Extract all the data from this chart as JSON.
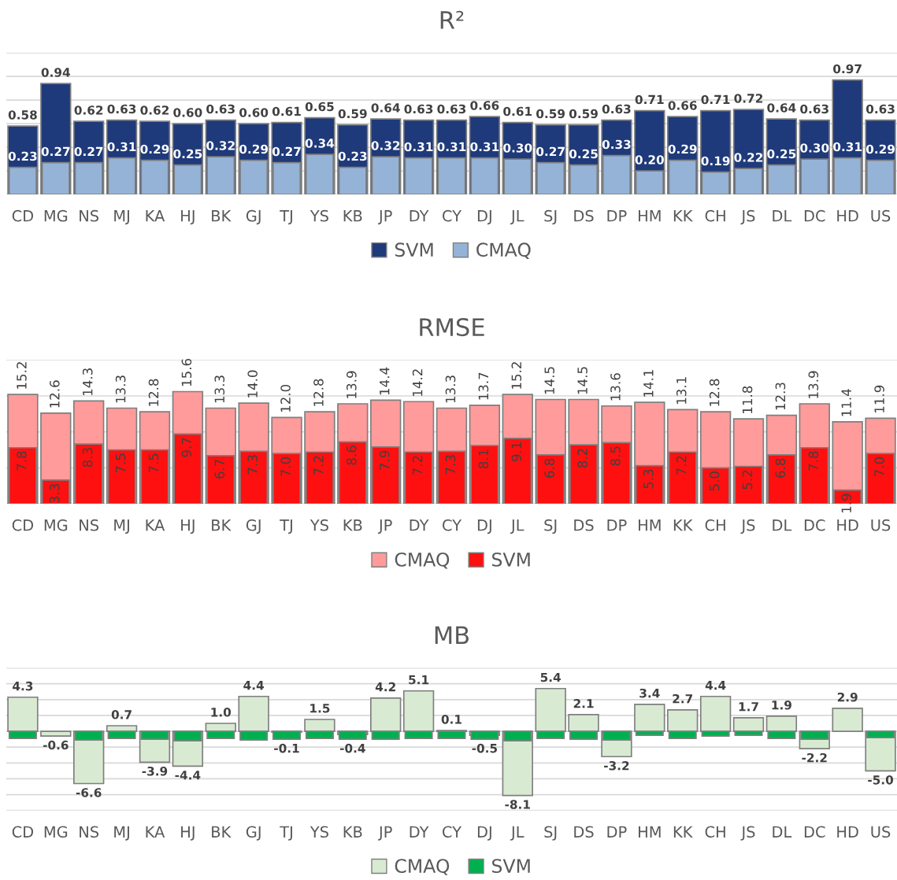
{
  "chart_data": [
    {
      "type": "bar",
      "title": "R²",
      "categories": [
        "CD",
        "MG",
        "NS",
        "MJ",
        "KA",
        "HJ",
        "BK",
        "GJ",
        "TJ",
        "YS",
        "KB",
        "JP",
        "DY",
        "CY",
        "DJ",
        "JL",
        "SJ",
        "DS",
        "DP",
        "HM",
        "KK",
        "CH",
        "JS",
        "DL",
        "DC",
        "HD",
        "US"
      ],
      "series": [
        {
          "name": "SVM",
          "color": "#1f3a7a",
          "values": [
            0.58,
            0.94,
            0.62,
            0.63,
            0.62,
            0.6,
            0.63,
            0.6,
            0.61,
            0.65,
            0.59,
            0.64,
            0.63,
            0.63,
            0.66,
            0.61,
            0.59,
            0.59,
            0.63,
            0.71,
            0.66,
            0.71,
            0.72,
            0.64,
            0.63,
            0.97,
            0.63
          ],
          "value_labels": [
            "0.58",
            "0.94",
            "0.62",
            "0.63",
            "0.62",
            "0.60",
            "0.63",
            "0.60",
            "0.61",
            "0.65",
            "0.59",
            "0.64",
            "0.63",
            "0.63",
            "0.66",
            "0.61",
            "0.59",
            "0.59",
            "0.63",
            "0.71",
            "0.66",
            "0.71",
            "0.72",
            "0.64",
            "0.63",
            "0.97",
            "0.63"
          ]
        },
        {
          "name": "CMAQ",
          "color": "#95b3d7",
          "values": [
            0.23,
            0.27,
            0.27,
            0.31,
            0.29,
            0.25,
            0.32,
            0.29,
            0.27,
            0.34,
            0.23,
            0.32,
            0.31,
            0.31,
            0.31,
            0.3,
            0.27,
            0.25,
            0.33,
            0.2,
            0.29,
            0.19,
            0.22,
            0.25,
            0.3,
            0.31,
            0.29
          ],
          "value_labels": [
            "0.23",
            "0.27",
            "0.27",
            "0.31",
            "0.29",
            "0.25",
            "0.32",
            "0.29",
            "0.27",
            "0.34",
            "0.23",
            "0.32",
            "0.31",
            "0.31",
            "0.31",
            "0.30",
            "0.27",
            "0.25",
            "0.33",
            "0.20",
            "0.29",
            "0.19",
            "0.22",
            "0.25",
            "0.30",
            "0.31",
            "0.29"
          ]
        }
      ],
      "ylim": [
        0,
        1.2
      ],
      "yticks": [
        {
          "value": 0,
          "label": null
        },
        {
          "value": 0.2,
          "label": null
        },
        {
          "value": 0.4,
          "label": null
        },
        {
          "value": 0.6,
          "label": null
        },
        {
          "value": 0.8,
          "label": null
        },
        {
          "value": 1.0,
          "label": null
        },
        {
          "value": 1.2,
          "label": null
        }
      ],
      "tick_labels": "x",
      "grid": "y",
      "legend": "bottom"
    },
    {
      "type": "bar",
      "title": "RMSE",
      "categories": [
        "CD",
        "MG",
        "NS",
        "MJ",
        "KA",
        "HJ",
        "BK",
        "GJ",
        "TJ",
        "YS",
        "KB",
        "JP",
        "DY",
        "CY",
        "DJ",
        "JL",
        "SJ",
        "DS",
        "DP",
        "HM",
        "KK",
        "CH",
        "JS",
        "DL",
        "DC",
        "HD",
        "US"
      ],
      "series": [
        {
          "name": "CMAQ",
          "color": "#ff9b9b",
          "values": [
            15.2,
            12.6,
            14.3,
            13.3,
            12.8,
            15.6,
            13.3,
            14.0,
            12.0,
            12.8,
            13.9,
            14.4,
            14.2,
            13.3,
            13.7,
            15.2,
            14.5,
            14.5,
            13.6,
            14.1,
            13.1,
            12.8,
            11.8,
            12.3,
            13.9,
            11.4,
            11.9
          ],
          "value_labels": [
            "15.2",
            "12.6",
            "14.3",
            "13.3",
            "12.8",
            "15.6",
            "13.3",
            "14.0",
            "12.0",
            "12.8",
            "13.9",
            "14.4",
            "14.2",
            "13.3",
            "13.7",
            "15.2",
            "14.5",
            "14.5",
            "13.6",
            "14.1",
            "13.1",
            "12.8",
            "11.8",
            "12.3",
            "13.9",
            "11.4",
            "11.9"
          ]
        },
        {
          "name": "SVM",
          "color": "#ff1010",
          "values": [
            7.8,
            3.3,
            8.3,
            7.5,
            7.5,
            9.7,
            6.7,
            7.3,
            7.0,
            7.2,
            8.6,
            7.9,
            7.2,
            7.3,
            8.1,
            9.1,
            6.8,
            8.2,
            8.5,
            5.3,
            7.2,
            5.0,
            5.2,
            6.8,
            7.8,
            1.9,
            7.0
          ],
          "value_labels": [
            "7.8",
            "3.3",
            "8.3",
            "7.5",
            "7.5",
            "9.7",
            "6.7",
            "7.3",
            "7.0",
            "7.2",
            "8.6",
            "7.9",
            "7.2",
            "7.3",
            "8.1",
            "9.1",
            "6.8",
            "8.2",
            "8.5",
            "5.3",
            "7.2",
            "5.0",
            "5.2",
            "6.8",
            "7.8",
            "1.9",
            "7.0"
          ]
        }
      ],
      "ylim": [
        0,
        20
      ],
      "yticks": [
        {
          "value": 0,
          "label": null
        },
        {
          "value": 5,
          "label": null
        },
        {
          "value": 10,
          "label": null
        },
        {
          "value": 15,
          "label": null
        },
        {
          "value": 20,
          "label": null
        }
      ],
      "tick_labels": "x",
      "grid": "y",
      "legend": "bottom"
    },
    {
      "type": "bar",
      "title": "MB",
      "categories": [
        "CD",
        "MG",
        "NS",
        "MJ",
        "KA",
        "HJ",
        "BK",
        "GJ",
        "TJ",
        "YS",
        "KB",
        "JP",
        "DY",
        "CY",
        "DJ",
        "JL",
        "SJ",
        "DS",
        "DP",
        "HM",
        "KK",
        "CH",
        "JS",
        "DL",
        "DC",
        "HD",
        "US"
      ],
      "series": [
        {
          "name": "CMAQ",
          "color": "#d9ead3",
          "values": [
            4.3,
            -0.6,
            -6.6,
            0.7,
            -3.9,
            -4.4,
            1.0,
            4.4,
            -0.1,
            1.5,
            -0.4,
            4.2,
            5.1,
            0.1,
            -0.5,
            -8.1,
            5.4,
            2.1,
            -3.2,
            3.4,
            2.7,
            4.4,
            1.7,
            1.9,
            -2.2,
            2.9,
            -5.0
          ],
          "value_labels": [
            "4.3",
            "-0.6",
            "-6.6",
            "0.7",
            "-3.9",
            "-4.4",
            "1.0",
            "4.4",
            "-0.1",
            "1.5",
            "-0.4",
            "4.2",
            "5.1",
            "0.1",
            "-0.5",
            "-8.1",
            "5.4",
            "2.1",
            "-3.2",
            "3.4",
            "2.7",
            "4.4",
            "1.7",
            "1.9",
            "-2.2",
            "2.9",
            "-5.0"
          ]
        },
        {
          "name": "SVM",
          "color": "#00b050",
          "values": [
            -0.9,
            null,
            -1.1,
            -0.9,
            -1.0,
            -1.2,
            -0.9,
            -1.1,
            -1.0,
            -0.9,
            -1.0,
            -1.0,
            -0.9,
            -0.9,
            -1.0,
            -1.2,
            -0.9,
            -1.0,
            -1.1,
            -0.5,
            -0.9,
            -0.6,
            -0.5,
            -0.9,
            -1.0,
            null,
            -0.8
          ]
        }
      ],
      "ylim": [
        -10,
        8
      ],
      "yticks": [
        {
          "value": -10,
          "label": null
        },
        {
          "value": -8,
          "label": null
        },
        {
          "value": -6,
          "label": null
        },
        {
          "value": -4,
          "label": null
        },
        {
          "value": -2,
          "label": null
        },
        {
          "value": 0,
          "label": null
        },
        {
          "value": 2,
          "label": null
        },
        {
          "value": 4,
          "label": null
        },
        {
          "value": 6,
          "label": null
        },
        {
          "value": 8,
          "label": null
        }
      ],
      "tick_labels": "x",
      "grid": "y",
      "legend": "bottom"
    }
  ]
}
